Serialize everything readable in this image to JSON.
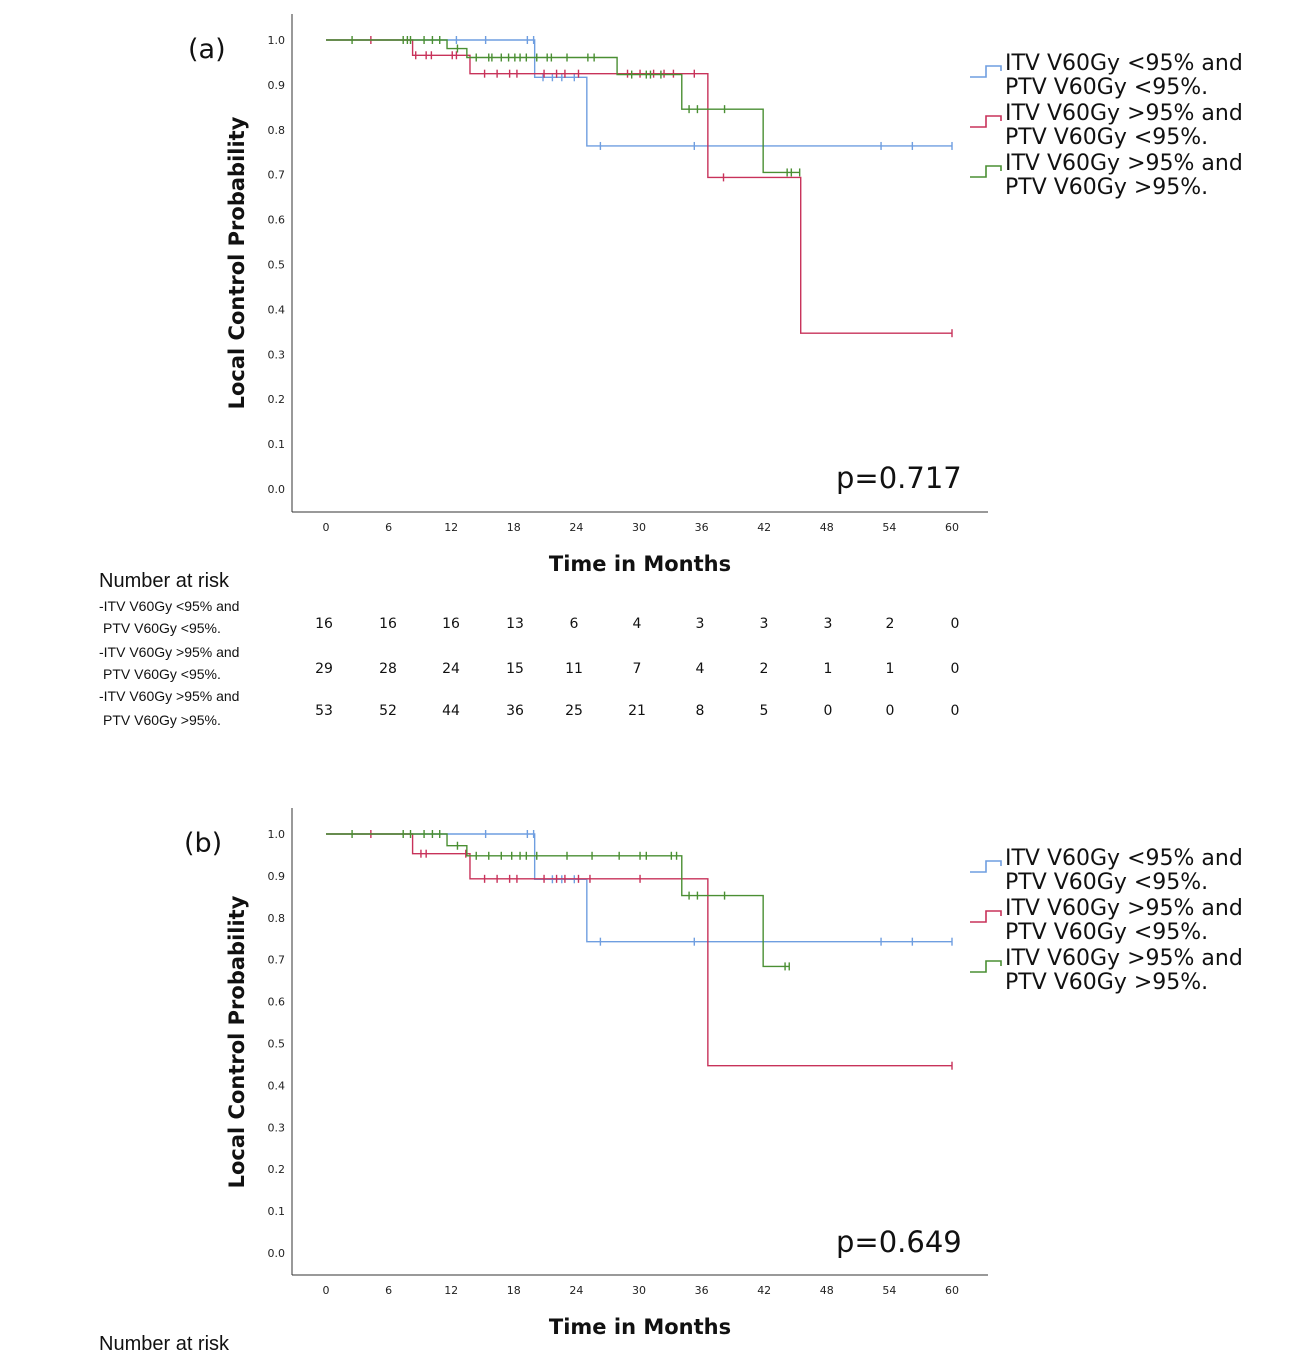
{
  "colors": {
    "series1": "#6f9ee0",
    "series2": "#c8325a",
    "series3": "#4a8f33"
  },
  "chart_data": [
    {
      "type": "line",
      "panel_label": "(a)",
      "xlabel": "Time in Months",
      "ylabel": "Local Control Probability",
      "xlim": [
        0,
        60
      ],
      "ylim": [
        0,
        1
      ],
      "xticks": [
        "0",
        "6",
        "12",
        "18",
        "24",
        "30",
        "36",
        "42",
        "48",
        "54",
        "60"
      ],
      "yticks": [
        "0.0",
        "0.1",
        "0.2",
        "0.3",
        "0.4",
        "0.5",
        "0.6",
        "0.7",
        "0.8",
        "0.9",
        "1.0"
      ],
      "p_value": "p=0.717",
      "legend": [
        [
          "ITV V60Gy <95% and",
          "PTV V60Gy <95%."
        ],
        [
          "ITV V60Gy >95% and",
          "PTV V60Gy <95%."
        ],
        [
          "ITV V60Gy >95% and",
          "PTV V60Gy >95%."
        ]
      ],
      "series": [
        {
          "name": "ITV V60Gy <95% and PTV V60Gy <95%.",
          "steps": [
            [
              0,
              1.0
            ],
            [
              20,
              0.917
            ],
            [
              25,
              0.764
            ],
            [
              60,
              0.764
            ]
          ],
          "censored": [
            [
              12.5,
              1.0
            ],
            [
              15.3,
              1.0
            ],
            [
              19.3,
              1.0
            ],
            [
              19.9,
              1.0
            ],
            [
              20.8,
              0.917
            ],
            [
              21.7,
              0.917
            ],
            [
              22.6,
              0.917
            ],
            [
              23.8,
              0.917
            ],
            [
              26.3,
              0.764
            ],
            [
              35.3,
              0.764
            ],
            [
              53.2,
              0.764
            ],
            [
              56.2,
              0.764
            ],
            [
              60,
              0.764
            ]
          ]
        },
        {
          "name": "ITV V60Gy >95% and PTV V60Gy <95%.",
          "steps": [
            [
              0,
              1.0
            ],
            [
              8.3,
              0.966
            ],
            [
              13.8,
              0.925
            ],
            [
              36.6,
              0.694
            ],
            [
              45.5,
              0.347
            ],
            [
              60,
              0.347
            ]
          ],
          "censored": [
            [
              4.3,
              1.0
            ],
            [
              8.6,
              0.966
            ],
            [
              9.6,
              0.966
            ],
            [
              10.1,
              0.966
            ],
            [
              12.1,
              0.966
            ],
            [
              12.5,
              0.966
            ],
            [
              15.2,
              0.925
            ],
            [
              16.4,
              0.925
            ],
            [
              17.6,
              0.925
            ],
            [
              18.3,
              0.925
            ],
            [
              20.9,
              0.925
            ],
            [
              22.1,
              0.925
            ],
            [
              22.9,
              0.925
            ],
            [
              24.2,
              0.925
            ],
            [
              28.9,
              0.925
            ],
            [
              30.1,
              0.925
            ],
            [
              31.4,
              0.925
            ],
            [
              32.4,
              0.925
            ],
            [
              33.3,
              0.925
            ],
            [
              35.3,
              0.925
            ],
            [
              38.1,
              0.694
            ],
            [
              60,
              0.347
            ]
          ]
        },
        {
          "name": "ITV V60Gy >95% and PTV V60Gy >95%.",
          "steps": [
            [
              0,
              1.0
            ],
            [
              11.6,
              0.981
            ],
            [
              13.5,
              0.961
            ],
            [
              27.9,
              0.923
            ],
            [
              34.1,
              0.846
            ],
            [
              41.9,
              0.705
            ],
            [
              45.4,
              0.705
            ]
          ],
          "censored": [
            [
              2.5,
              1.0
            ],
            [
              7.4,
              1.0
            ],
            [
              7.8,
              1.0
            ],
            [
              8.1,
              1.0
            ],
            [
              9.4,
              1.0
            ],
            [
              10.2,
              1.0
            ],
            [
              10.9,
              1.0
            ],
            [
              12.6,
              0.981
            ],
            [
              14.4,
              0.961
            ],
            [
              15.6,
              0.961
            ],
            [
              15.9,
              0.961
            ],
            [
              16.8,
              0.961
            ],
            [
              17.5,
              0.961
            ],
            [
              18.1,
              0.961
            ],
            [
              18.6,
              0.961
            ],
            [
              19.2,
              0.961
            ],
            [
              20.2,
              0.961
            ],
            [
              21.2,
              0.961
            ],
            [
              21.6,
              0.961
            ],
            [
              23.1,
              0.961
            ],
            [
              25.1,
              0.961
            ],
            [
              25.7,
              0.961
            ],
            [
              29.3,
              0.923
            ],
            [
              30.7,
              0.923
            ],
            [
              31.1,
              0.923
            ],
            [
              32.1,
              0.923
            ],
            [
              34.8,
              0.846
            ],
            [
              35.6,
              0.846
            ],
            [
              38.2,
              0.846
            ],
            [
              44.2,
              0.705
            ],
            [
              44.6,
              0.705
            ],
            [
              45.4,
              0.705
            ]
          ]
        }
      ]
    },
    {
      "type": "line",
      "panel_label": "(b)",
      "xlabel": "Time in Months",
      "ylabel": "Local Control Probability",
      "xlim": [
        0,
        60
      ],
      "ylim": [
        0,
        1
      ],
      "xticks": [
        "0",
        "6",
        "12",
        "18",
        "24",
        "30",
        "36",
        "42",
        "48",
        "54",
        "60"
      ],
      "yticks": [
        "0.0",
        "0.1",
        "0.2",
        "0.3",
        "0.4",
        "0.5",
        "0.6",
        "0.7",
        "0.8",
        "0.9",
        "1.0"
      ],
      "p_value": "p=0.649",
      "legend": [
        [
          "ITV V60Gy <95% and",
          "PTV V60Gy <95%."
        ],
        [
          "ITV V60Gy >95% and",
          "PTV V60Gy <95%."
        ],
        [
          "ITV V60Gy >95% and",
          "PTV V60Gy >95%."
        ]
      ],
      "series": [
        {
          "name": "ITV V60Gy <95% and PTV V60Gy <95%.",
          "steps": [
            [
              0,
              1.0
            ],
            [
              20,
              0.892
            ],
            [
              25,
              0.743
            ],
            [
              60,
              0.743
            ]
          ],
          "censored": [
            [
              15.3,
              1.0
            ],
            [
              19.3,
              1.0
            ],
            [
              19.9,
              1.0
            ],
            [
              21.7,
              0.892
            ],
            [
              22.6,
              0.892
            ],
            [
              23.8,
              0.892
            ],
            [
              26.3,
              0.743
            ],
            [
              35.3,
              0.743
            ],
            [
              53.2,
              0.743
            ],
            [
              56.2,
              0.743
            ],
            [
              60,
              0.743
            ]
          ]
        },
        {
          "name": "ITV V60Gy >95% and PTV V60Gy <95%.",
          "steps": [
            [
              0,
              1.0
            ],
            [
              8.3,
              0.953
            ],
            [
              13.8,
              0.893
            ],
            [
              36.6,
              0.447
            ],
            [
              60,
              0.447
            ]
          ],
          "censored": [
            [
              4.3,
              1.0
            ],
            [
              9.1,
              0.953
            ],
            [
              9.6,
              0.953
            ],
            [
              13.4,
              0.953
            ],
            [
              15.2,
              0.893
            ],
            [
              16.4,
              0.893
            ],
            [
              17.6,
              0.893
            ],
            [
              18.3,
              0.893
            ],
            [
              20.9,
              0.893
            ],
            [
              22.1,
              0.893
            ],
            [
              22.9,
              0.893
            ],
            [
              24.2,
              0.893
            ],
            [
              25.3,
              0.893
            ],
            [
              30.1,
              0.893
            ],
            [
              60,
              0.447
            ]
          ]
        },
        {
          "name": "ITV V60Gy >95% and PTV V60Gy >95%.",
          "steps": [
            [
              0,
              1.0
            ],
            [
              11.6,
              0.972
            ],
            [
              13.5,
              0.948
            ],
            [
              34.1,
              0.853
            ],
            [
              41.9,
              0.684
            ],
            [
              44.4,
              0.684
            ]
          ],
          "censored": [
            [
              2.5,
              1.0
            ],
            [
              7.4,
              1.0
            ],
            [
              8.1,
              1.0
            ],
            [
              9.4,
              1.0
            ],
            [
              10.2,
              1.0
            ],
            [
              10.9,
              1.0
            ],
            [
              12.6,
              0.972
            ],
            [
              14.4,
              0.948
            ],
            [
              15.6,
              0.948
            ],
            [
              16.8,
              0.948
            ],
            [
              17.8,
              0.948
            ],
            [
              18.6,
              0.948
            ],
            [
              19.2,
              0.948
            ],
            [
              20.2,
              0.948
            ],
            [
              23.1,
              0.948
            ],
            [
              25.5,
              0.948
            ],
            [
              28.1,
              0.948
            ],
            [
              30.1,
              0.948
            ],
            [
              30.7,
              0.948
            ],
            [
              33.1,
              0.948
            ],
            [
              33.6,
              0.948
            ],
            [
              34.8,
              0.853
            ],
            [
              35.6,
              0.853
            ],
            [
              38.2,
              0.853
            ],
            [
              44.0,
              0.684
            ],
            [
              44.4,
              0.684
            ]
          ]
        }
      ]
    }
  ],
  "risk_table": {
    "title": "Number at risk",
    "rows": [
      {
        "label_line1": "-ITV V60Gy <95% and",
        "label_line2": "PTV V60Gy <95%.",
        "values": [
          "16",
          "16",
          "16",
          "13",
          "6",
          "4",
          "3",
          "3",
          "3",
          "2",
          "0"
        ]
      },
      {
        "label_line1": "-ITV V60Gy >95% and",
        "label_line2": "PTV V60Gy <95%.",
        "values": [
          "29",
          "28",
          "24",
          "15",
          "11",
          "7",
          "4",
          "2",
          "1",
          "1",
          "0"
        ]
      },
      {
        "label_line1": "-ITV V60Gy >95% and",
        "label_line2": "PTV V60Gy >95%.",
        "values": [
          "53",
          "52",
          "44",
          "36",
          "25",
          "21",
          "8",
          "5",
          "0",
          "0",
          "0"
        ]
      }
    ]
  },
  "risk_table_b": {
    "title": "Number at risk"
  }
}
